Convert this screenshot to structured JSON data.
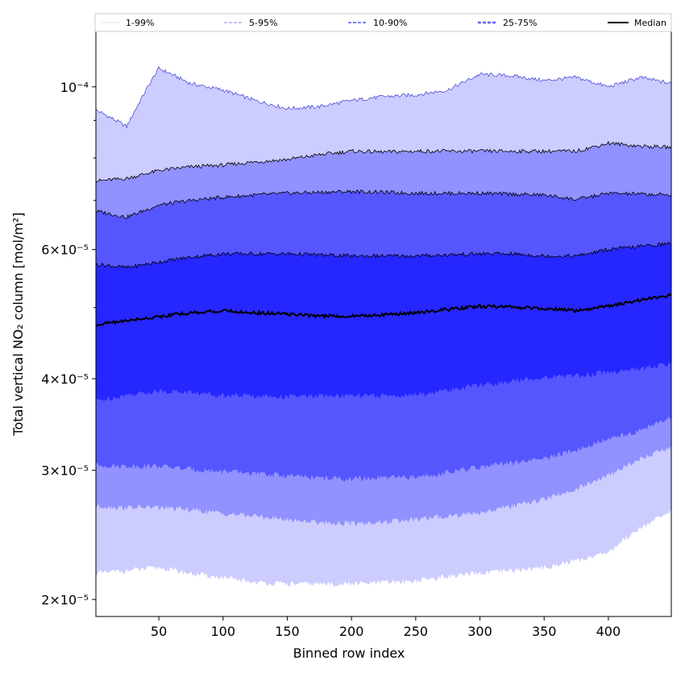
{
  "chart_data": {
    "type": "area",
    "title": "",
    "xlabel": "Binned row index",
    "ylabel": "Total vertical NO₂ column [mol/m²]",
    "yscale": "log",
    "xlim": [
      1,
      449
    ],
    "ylim": [
      1.896e-05,
      0.000119
    ],
    "value_scale": 1e-05,
    "x": [
      1,
      25,
      50,
      75,
      100,
      125,
      150,
      175,
      200,
      225,
      250,
      275,
      300,
      325,
      350,
      375,
      400,
      425,
      449
    ],
    "percentiles": {
      "p1": [
        2.17,
        2.19,
        2.21,
        2.17,
        2.14,
        2.11,
        2.1,
        2.1,
        2.1,
        2.11,
        2.12,
        2.15,
        2.17,
        2.19,
        2.21,
        2.26,
        2.32,
        2.51,
        2.63
      ],
      "p5": [
        2.68,
        2.67,
        2.67,
        2.65,
        2.62,
        2.6,
        2.57,
        2.55,
        2.54,
        2.55,
        2.57,
        2.6,
        2.63,
        2.68,
        2.74,
        2.83,
        2.95,
        3.11,
        3.23
      ],
      "p10": [
        3.05,
        3.04,
        3.04,
        3.01,
        2.99,
        2.97,
        2.95,
        2.93,
        2.92,
        2.93,
        2.94,
        2.98,
        3.03,
        3.07,
        3.11,
        3.2,
        3.31,
        3.4,
        3.54
      ],
      "p25": [
        3.73,
        3.8,
        3.85,
        3.83,
        3.8,
        3.79,
        3.78,
        3.79,
        3.79,
        3.79,
        3.8,
        3.86,
        3.92,
        3.97,
        4.02,
        4.04,
        4.08,
        4.13,
        4.19
      ],
      "median": [
        4.74,
        4.8,
        4.86,
        4.92,
        4.95,
        4.92,
        4.9,
        4.87,
        4.87,
        4.89,
        4.92,
        4.97,
        5.02,
        5.01,
        4.99,
        4.95,
        5.02,
        5.12,
        5.2
      ],
      "p75": [
        5.73,
        5.67,
        5.77,
        5.86,
        5.92,
        5.92,
        5.92,
        5.9,
        5.88,
        5.88,
        5.88,
        5.9,
        5.92,
        5.92,
        5.88,
        5.88,
        6.0,
        6.06,
        6.12
      ],
      "p90": [
        6.77,
        6.64,
        6.9,
        7.0,
        7.07,
        7.12,
        7.16,
        7.18,
        7.2,
        7.18,
        7.16,
        7.16,
        7.16,
        7.14,
        7.12,
        7.02,
        7.16,
        7.14,
        7.12
      ],
      "p95": [
        7.44,
        7.5,
        7.69,
        7.78,
        7.82,
        7.9,
        7.96,
        8.08,
        8.17,
        8.15,
        8.17,
        8.17,
        8.17,
        8.17,
        8.17,
        8.17,
        8.38,
        8.3,
        8.27
      ],
      "p99": [
        9.3,
        8.83,
        10.6,
        10.1,
        9.9,
        9.58,
        9.34,
        9.4,
        9.58,
        9.7,
        9.75,
        9.9,
        10.4,
        10.35,
        10.2,
        10.3,
        10.0,
        10.3,
        10.1
      ]
    },
    "bands": [
      {
        "name": "1-99%",
        "lower": "p1",
        "upper": "p99",
        "color": "#ccccff",
        "line": "#e0e0ff"
      },
      {
        "name": "5-95%",
        "lower": "p5",
        "upper": "p95",
        "color": "#9191ff",
        "line": "#b0b0ff"
      },
      {
        "name": "10-90%",
        "lower": "p10",
        "upper": "p90",
        "color": "#5656ff",
        "line": "#8080ff"
      },
      {
        "name": "25-75%",
        "lower": "p25",
        "upper": "p75",
        "color": "#2626ff",
        "line": "#6060ff"
      }
    ],
    "median_label": "Median",
    "median_color": "#000000",
    "xticks": [
      50,
      100,
      150,
      200,
      250,
      300,
      350,
      400
    ],
    "xtick_labels": [
      "50",
      "100",
      "150",
      "200",
      "250",
      "300",
      "350",
      "400"
    ],
    "yticks": [
      2e-05,
      3e-05,
      4e-05,
      6e-05,
      0.0001
    ],
    "ytick_labels": [
      "2×10⁻⁵",
      "3×10⁻⁵",
      "4×10⁻⁵",
      "6×10⁻⁵",
      "10⁻⁴"
    ],
    "yminor": [
      5e-05,
      7e-05,
      8e-05,
      9e-05
    ],
    "legend_placement": "top"
  }
}
